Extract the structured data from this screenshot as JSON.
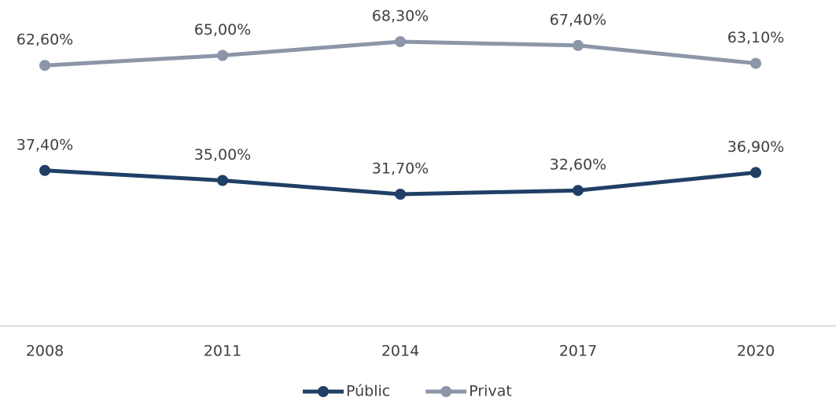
{
  "chart_data": {
    "type": "line",
    "categories": [
      "2008",
      "2011",
      "2014",
      "2017",
      "2020"
    ],
    "series": [
      {
        "name": "Públic",
        "color": "#1f3f66",
        "values": [
          37.4,
          35.0,
          31.7,
          32.6,
          36.9
        ],
        "value_labels": [
          "37,40%",
          "35,00%",
          "31,70%",
          "32,60%",
          "36,90%"
        ]
      },
      {
        "name": "Privat",
        "color": "#8c96a8",
        "values": [
          62.6,
          65.0,
          68.3,
          67.4,
          63.1
        ],
        "value_labels": [
          "62,60%",
          "65,00%",
          "68,30%",
          "67,40%",
          "63,10%"
        ]
      }
    ],
    "ylim": [
      0,
      80
    ],
    "legend": "bottom"
  }
}
